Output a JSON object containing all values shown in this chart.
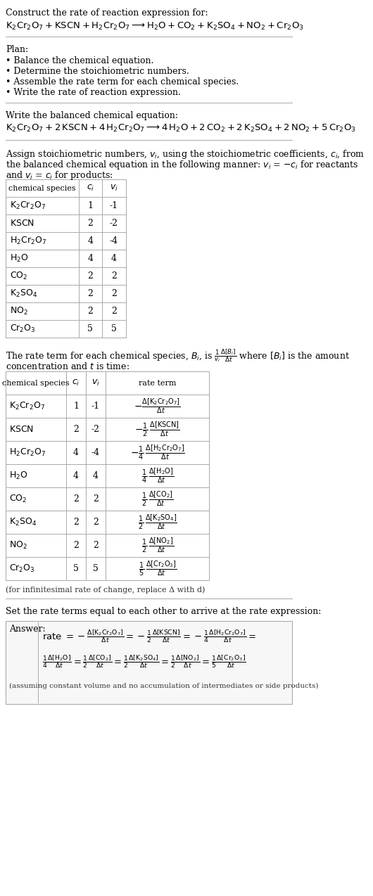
{
  "title_line1": "Construct the rate of reaction expression for:",
  "plan_header": "Plan:",
  "plan_items": [
    "• Balance the chemical equation.",
    "• Determine the stoichiometric numbers.",
    "• Assemble the rate term for each chemical species.",
    "• Write the rate of reaction expression."
  ],
  "balanced_header": "Write the balanced chemical equation:",
  "table1_data": [
    [
      "K_2Cr_2O_7",
      "1",
      "-1"
    ],
    [
      "KSCN",
      "2",
      "-2"
    ],
    [
      "H_2Cr_2O_7",
      "4",
      "-4"
    ],
    [
      "H_2O",
      "4",
      "4"
    ],
    [
      "CO_2",
      "2",
      "2"
    ],
    [
      "K_2SO_4",
      "2",
      "2"
    ],
    [
      "NO_2",
      "2",
      "2"
    ],
    [
      "Cr_2O_3",
      "5",
      "5"
    ]
  ],
  "table2_data": [
    [
      "K_2Cr_2O_7",
      "1",
      "-1"
    ],
    [
      "KSCN",
      "2",
      "-2"
    ],
    [
      "H_2Cr_2O_7",
      "4",
      "-4"
    ],
    [
      "H_2O",
      "4",
      "4"
    ],
    [
      "CO_2",
      "2",
      "2"
    ],
    [
      "K_2SO_4",
      "2",
      "2"
    ],
    [
      "NO_2",
      "2",
      "2"
    ],
    [
      "Cr_2O_3",
      "5",
      "5"
    ]
  ],
  "infinitesimal_note": "(for infinitesimal rate of change, replace Δ with d)",
  "final_note": "(assuming constant volume and no accumulation of intermediates or side products)",
  "bg_color": "#ffffff",
  "text_color": "#000000",
  "table_border_color": "#aaaaaa"
}
